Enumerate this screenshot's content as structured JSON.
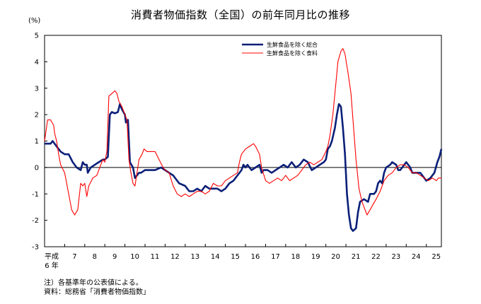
{
  "title": "消費者物価指数（全国）の前年同月比の推移",
  "unit": "(%)",
  "notes": [
    "注）各基準年の公表値による。",
    "資料：総務省「消費者物価指数」"
  ],
  "colors": {
    "core": "#0a1f78",
    "food_excl": "#ff0000",
    "axis": "#000000"
  },
  "chart_data": {
    "type": "line",
    "title": "消費者物価指数（全国）の前年同月比の推移",
    "ylabel": "(%)",
    "ylim": [
      -3,
      5
    ],
    "yticks": [
      -3,
      -2,
      -1,
      0,
      1,
      2,
      3,
      4,
      5
    ],
    "xlim": [
      6,
      25.75
    ],
    "xticks": [
      {
        "value": 6,
        "label": "平成"
      },
      {
        "value": 7,
        "label": "7"
      },
      {
        "value": 8,
        "label": "8"
      },
      {
        "value": 9,
        "label": "9"
      },
      {
        "value": 10,
        "label": "10"
      },
      {
        "value": 11,
        "label": "11"
      },
      {
        "value": 12,
        "label": "12"
      },
      {
        "value": 13,
        "label": "13"
      },
      {
        "value": 14,
        "label": "14"
      },
      {
        "value": 15,
        "label": "15"
      },
      {
        "value": 16,
        "label": "16"
      },
      {
        "value": 17,
        "label": "17"
      },
      {
        "value": 18,
        "label": "18"
      },
      {
        "value": 19,
        "label": "19"
      },
      {
        "value": 20,
        "label": "20"
      },
      {
        "value": 21,
        "label": "21"
      },
      {
        "value": 22,
        "label": "22"
      },
      {
        "value": 23,
        "label": "23"
      },
      {
        "value": 24,
        "label": "24"
      },
      {
        "value": 25,
        "label": "25"
      }
    ],
    "xtick_sublabel": "6 年",
    "legend_position": "top-right",
    "grid": false,
    "series": [
      {
        "name": "生鮮食品を除く総合",
        "color": "#0a1f78",
        "points": [
          [
            6.0,
            0.9
          ],
          [
            6.3,
            0.9
          ],
          [
            6.4,
            1.0
          ],
          [
            6.6,
            0.8
          ],
          [
            6.8,
            0.6
          ],
          [
            7.0,
            0.5
          ],
          [
            7.2,
            0.5
          ],
          [
            7.4,
            0.2
          ],
          [
            7.6,
            0.0
          ],
          [
            7.8,
            -0.1
          ],
          [
            7.9,
            0.2
          ],
          [
            8.0,
            0.1
          ],
          [
            8.1,
            0.1
          ],
          [
            8.15,
            -0.2
          ],
          [
            8.3,
            0.0
          ],
          [
            8.5,
            0.1
          ],
          [
            8.7,
            0.2
          ],
          [
            8.9,
            0.3
          ],
          [
            9.0,
            0.3
          ],
          [
            9.15,
            0.4
          ],
          [
            9.25,
            2.0
          ],
          [
            9.35,
            2.1
          ],
          [
            9.5,
            2.05
          ],
          [
            9.65,
            2.1
          ],
          [
            9.75,
            2.4
          ],
          [
            9.85,
            2.2
          ],
          [
            10.0,
            2.0
          ],
          [
            10.05,
            1.7
          ],
          [
            10.15,
            1.8
          ],
          [
            10.25,
            0.2
          ],
          [
            10.4,
            0.0
          ],
          [
            10.5,
            -0.4
          ],
          [
            10.6,
            -0.3
          ],
          [
            10.7,
            -0.2
          ],
          [
            10.8,
            -0.2
          ],
          [
            11.0,
            -0.1
          ],
          [
            11.5,
            -0.1
          ],
          [
            11.8,
            0.0
          ],
          [
            12.0,
            -0.1
          ],
          [
            12.2,
            -0.2
          ],
          [
            12.4,
            -0.3
          ],
          [
            12.7,
            -0.6
          ],
          [
            13.0,
            -0.7
          ],
          [
            13.2,
            -0.9
          ],
          [
            13.4,
            -0.9
          ],
          [
            13.6,
            -0.8
          ],
          [
            13.8,
            -0.9
          ],
          [
            14.0,
            -0.7
          ],
          [
            14.2,
            -0.8
          ],
          [
            14.4,
            -0.8
          ],
          [
            14.6,
            -0.8
          ],
          [
            14.8,
            -0.9
          ],
          [
            15.0,
            -0.8
          ],
          [
            15.2,
            -0.6
          ],
          [
            15.4,
            -0.5
          ],
          [
            15.6,
            -0.3
          ],
          [
            15.8,
            -0.1
          ],
          [
            15.9,
            0.1
          ],
          [
            16.0,
            0.0
          ],
          [
            16.1,
            0.1
          ],
          [
            16.3,
            -0.1
          ],
          [
            16.5,
            0.0
          ],
          [
            16.7,
            0.1
          ],
          [
            16.8,
            -0.2
          ],
          [
            16.9,
            -0.1
          ],
          [
            17.1,
            -0.1
          ],
          [
            17.3,
            -0.2
          ],
          [
            17.5,
            -0.1
          ],
          [
            17.7,
            0.0
          ],
          [
            17.9,
            0.1
          ],
          [
            18.1,
            0.0
          ],
          [
            18.3,
            0.2
          ],
          [
            18.5,
            0.0
          ],
          [
            18.7,
            0.1
          ],
          [
            18.9,
            0.3
          ],
          [
            19.1,
            0.2
          ],
          [
            19.3,
            -0.1
          ],
          [
            19.5,
            0.0
          ],
          [
            19.7,
            0.1
          ],
          [
            19.9,
            0.2
          ],
          [
            20.0,
            0.3
          ],
          [
            20.1,
            0.7
          ],
          [
            20.2,
            0.8
          ],
          [
            20.3,
            1.0
          ],
          [
            20.45,
            1.5
          ],
          [
            20.55,
            2.0
          ],
          [
            20.65,
            2.4
          ],
          [
            20.75,
            2.3
          ],
          [
            20.85,
            1.5
          ],
          [
            20.95,
            0.5
          ],
          [
            21.05,
            -1.0
          ],
          [
            21.15,
            -1.8
          ],
          [
            21.25,
            -2.3
          ],
          [
            21.35,
            -2.4
          ],
          [
            21.5,
            -2.3
          ],
          [
            21.6,
            -1.7
          ],
          [
            21.7,
            -1.3
          ],
          [
            21.9,
            -1.2
          ],
          [
            22.1,
            -1.3
          ],
          [
            22.2,
            -1.0
          ],
          [
            22.4,
            -1.0
          ],
          [
            22.5,
            -0.9
          ],
          [
            22.6,
            -0.6
          ],
          [
            22.7,
            -0.5
          ],
          [
            22.8,
            -0.6
          ],
          [
            22.9,
            -0.2
          ],
          [
            23.0,
            0.0
          ],
          [
            23.2,
            0.1
          ],
          [
            23.3,
            0.2
          ],
          [
            23.5,
            0.1
          ],
          [
            23.6,
            -0.1
          ],
          [
            23.7,
            -0.1
          ],
          [
            23.9,
            0.1
          ],
          [
            24.0,
            0.2
          ],
          [
            24.2,
            0.0
          ],
          [
            24.3,
            -0.2
          ],
          [
            24.5,
            -0.2
          ],
          [
            24.7,
            -0.2
          ],
          [
            24.8,
            -0.3
          ],
          [
            25.0,
            -0.5
          ],
          [
            25.2,
            -0.4
          ],
          [
            25.4,
            -0.2
          ],
          [
            25.55,
            0.2
          ],
          [
            25.65,
            0.4
          ],
          [
            25.75,
            0.7
          ]
        ]
      },
      {
        "name": "生鮮食品を除く食料",
        "color": "#ff0000",
        "points": [
          [
            6.0,
            1.0
          ],
          [
            6.15,
            1.8
          ],
          [
            6.3,
            1.8
          ],
          [
            6.45,
            1.6
          ],
          [
            6.5,
            1.3
          ],
          [
            6.6,
            1.0
          ],
          [
            6.7,
            0.5
          ],
          [
            6.8,
            0.1
          ],
          [
            7.0,
            -0.2
          ],
          [
            7.1,
            -0.6
          ],
          [
            7.2,
            -1.0
          ],
          [
            7.35,
            -1.6
          ],
          [
            7.5,
            -1.8
          ],
          [
            7.65,
            -1.6
          ],
          [
            7.8,
            -0.6
          ],
          [
            7.9,
            -0.7
          ],
          [
            8.0,
            -0.6
          ],
          [
            8.1,
            -1.1
          ],
          [
            8.2,
            -0.7
          ],
          [
            8.4,
            -0.4
          ],
          [
            8.6,
            -0.3
          ],
          [
            8.8,
            0.1
          ],
          [
            8.9,
            0.3
          ],
          [
            9.0,
            0.2
          ],
          [
            9.1,
            0.6
          ],
          [
            9.2,
            2.7
          ],
          [
            9.35,
            2.8
          ],
          [
            9.5,
            2.9
          ],
          [
            9.6,
            2.8
          ],
          [
            9.7,
            2.5
          ],
          [
            9.85,
            2.3
          ],
          [
            10.0,
            2.0
          ],
          [
            10.1,
            1.8
          ],
          [
            10.2,
            0.3
          ],
          [
            10.3,
            -0.2
          ],
          [
            10.4,
            -0.6
          ],
          [
            10.5,
            -0.7
          ],
          [
            10.6,
            -0.2
          ],
          [
            10.7,
            0.3
          ],
          [
            10.85,
            0.5
          ],
          [
            10.95,
            0.7
          ],
          [
            11.1,
            0.6
          ],
          [
            11.3,
            0.6
          ],
          [
            11.5,
            0.6
          ],
          [
            11.7,
            0.3
          ],
          [
            11.9,
            0.0
          ],
          [
            12.0,
            -0.1
          ],
          [
            12.2,
            -0.2
          ],
          [
            12.4,
            -0.7
          ],
          [
            12.6,
            -1.0
          ],
          [
            12.8,
            -1.1
          ],
          [
            13.0,
            -1.0
          ],
          [
            13.2,
            -1.1
          ],
          [
            13.4,
            -1.0
          ],
          [
            13.6,
            -0.9
          ],
          [
            13.8,
            -0.9
          ],
          [
            14.0,
            -1.0
          ],
          [
            14.2,
            -0.9
          ],
          [
            14.4,
            -0.6
          ],
          [
            14.6,
            -0.7
          ],
          [
            14.8,
            -0.7
          ],
          [
            15.0,
            -0.5
          ],
          [
            15.2,
            -0.4
          ],
          [
            15.4,
            -0.3
          ],
          [
            15.6,
            -0.2
          ],
          [
            15.7,
            0.2
          ],
          [
            15.8,
            0.5
          ],
          [
            16.0,
            0.7
          ],
          [
            16.2,
            0.8
          ],
          [
            16.4,
            0.9
          ],
          [
            16.5,
            0.8
          ],
          [
            16.7,
            0.5
          ],
          [
            16.8,
            0.0
          ],
          [
            17.0,
            -0.5
          ],
          [
            17.2,
            -0.6
          ],
          [
            17.4,
            -0.5
          ],
          [
            17.6,
            -0.4
          ],
          [
            17.8,
            -0.5
          ],
          [
            18.0,
            -0.3
          ],
          [
            18.2,
            -0.5
          ],
          [
            18.4,
            -0.4
          ],
          [
            18.6,
            -0.3
          ],
          [
            18.8,
            -0.1
          ],
          [
            19.0,
            0.1
          ],
          [
            19.2,
            0.2
          ],
          [
            19.4,
            0.1
          ],
          [
            19.6,
            0.2
          ],
          [
            19.8,
            0.3
          ],
          [
            20.0,
            0.6
          ],
          [
            20.1,
            0.8
          ],
          [
            20.2,
            1.2
          ],
          [
            20.35,
            2.0
          ],
          [
            20.5,
            3.2
          ],
          [
            20.6,
            4.0
          ],
          [
            20.75,
            4.4
          ],
          [
            20.85,
            4.5
          ],
          [
            20.95,
            4.3
          ],
          [
            21.1,
            3.6
          ],
          [
            21.25,
            2.8
          ],
          [
            21.35,
            1.8
          ],
          [
            21.5,
            0.3
          ],
          [
            21.65,
            -0.8
          ],
          [
            21.8,
            -1.3
          ],
          [
            21.9,
            -1.5
          ],
          [
            22.05,
            -1.8
          ],
          [
            22.2,
            -1.6
          ],
          [
            22.35,
            -1.4
          ],
          [
            22.5,
            -1.2
          ],
          [
            22.7,
            -0.9
          ],
          [
            22.9,
            -0.5
          ],
          [
            23.1,
            -0.3
          ],
          [
            23.3,
            -0.2
          ],
          [
            23.5,
            0.0
          ],
          [
            23.7,
            0.1
          ],
          [
            23.9,
            0.1
          ],
          [
            24.1,
            0.0
          ],
          [
            24.3,
            -0.2
          ],
          [
            24.5,
            -0.2
          ],
          [
            24.7,
            -0.3
          ],
          [
            24.9,
            -0.4
          ],
          [
            25.1,
            -0.5
          ],
          [
            25.3,
            -0.4
          ],
          [
            25.5,
            -0.5
          ],
          [
            25.6,
            -0.4
          ],
          [
            25.75,
            -0.4
          ]
        ]
      }
    ]
  }
}
